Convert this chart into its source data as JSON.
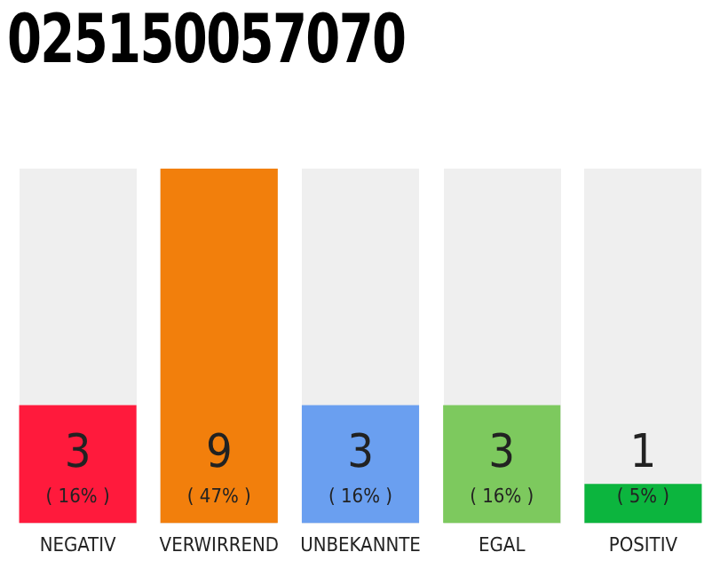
{
  "chart_data": {
    "type": "bar",
    "title": "025150057070",
    "categories": [
      "NEGATIV",
      "VERWIRREND",
      "UNBEKANNTE",
      "EGAL",
      "POSITIV"
    ],
    "values": [
      3,
      9,
      3,
      3,
      1
    ],
    "colors": [
      "#ff1a3c",
      "#f27f0c",
      "#6a9ff0",
      "#7dc95e",
      "#0cb53e"
    ],
    "value_labels": [
      "3\n( 16% )",
      "9\n( 47% )",
      "3\n( 16% )",
      "3\n( 16% )",
      "1\n( 5% )"
    ],
    "grid": false,
    "legend": false
  }
}
